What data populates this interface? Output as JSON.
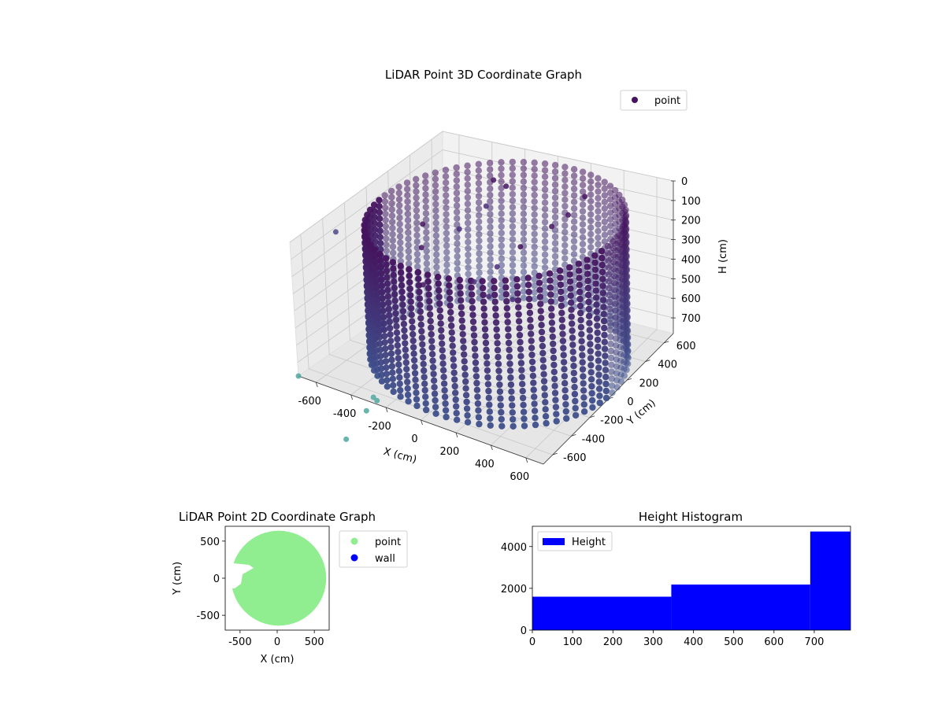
{
  "chart_data": [
    {
      "type": "scatter",
      "title": "LiDAR Point 3D Coordinate Graph",
      "xlabel": "X (cm)",
      "ylabel": "Y (cm)",
      "zlabel": "H (cm)",
      "xlim": [
        -700,
        700
      ],
      "ylim": [
        -700,
        700
      ],
      "zlim": [
        0,
        780
      ],
      "z_inverted": true,
      "x_ticks": [
        -600,
        -400,
        -200,
        0,
        200,
        400,
        600
      ],
      "y_ticks": [
        -600,
        -400,
        -200,
        0,
        200,
        400,
        600
      ],
      "z_ticks": [
        0,
        100,
        200,
        300,
        400,
        500,
        600,
        700
      ],
      "grid": true,
      "legend": {
        "position": "top-right",
        "entries": [
          {
            "label": "point",
            "color": "#46145f"
          }
        ]
      },
      "cylinder": {
        "center": [
          30,
          60
        ],
        "radius": 660,
        "h_top": 60,
        "h_bottom": 780,
        "angular_samples": 72,
        "height_samples": 22
      },
      "extra_points": [
        {
          "x": -560,
          "y": -500,
          "h": 0,
          "color": "#4e4a8a"
        },
        {
          "x": -250,
          "y": 480,
          "h": 80,
          "color": "#46145f"
        },
        {
          "x": -200,
          "y": 520,
          "h": 120,
          "color": "#46145f"
        },
        {
          "x": -500,
          "y": 200,
          "h": 250,
          "color": "#46145f"
        },
        {
          "x": -420,
          "y": 60,
          "h": 300,
          "color": "#46145f"
        },
        {
          "x": -330,
          "y": -80,
          "h": 420,
          "color": "#46145f"
        },
        {
          "x": -250,
          "y": 150,
          "h": 200,
          "color": "#4a2f7a"
        },
        {
          "x": -150,
          "y": 250,
          "h": 100,
          "color": "#4a2f7a"
        },
        {
          "x": -100,
          "y": 40,
          "h": 400,
          "color": "#4a2f7a"
        },
        {
          "x": -40,
          "y": 80,
          "h": 480,
          "color": "#4a2f7a"
        },
        {
          "x": 40,
          "y": 180,
          "h": 520,
          "color": "#4a2f7a"
        },
        {
          "x": 20,
          "y": 300,
          "h": 300,
          "color": "#46145f"
        },
        {
          "x": 160,
          "y": 380,
          "h": 200,
          "color": "#46145f"
        },
        {
          "x": 260,
          "y": 380,
          "h": 120,
          "color": "#46145f"
        },
        {
          "x": 300,
          "y": 480,
          "h": 60,
          "color": "#46145f"
        },
        {
          "x": -60,
          "y": 200,
          "h": 380,
          "color": "#4a2f7a"
        },
        {
          "x": -700,
          "y": -700,
          "h": 780,
          "color": "#4fa8a0"
        },
        {
          "x": -300,
          "y": -650,
          "h": 780,
          "color": "#4fa8a0"
        },
        {
          "x": -250,
          "y": -700,
          "h": 760,
          "color": "#4fa8a0"
        },
        {
          "x": -260,
          "y": -790,
          "h": 780,
          "color": "#4fa8a0"
        },
        {
          "x": -200,
          "y": -1100,
          "h": 780,
          "color": "#4fa8a0"
        }
      ]
    },
    {
      "type": "scatter",
      "title": "LiDAR Point 2D Coordinate Graph",
      "xlabel": "X (cm)",
      "ylabel": "Y (cm)",
      "xlim": [
        -700,
        700
      ],
      "ylim": [
        -700,
        700
      ],
      "x_ticks": [
        -500,
        0,
        500
      ],
      "y_ticks": [
        -500,
        0,
        500
      ],
      "legend": {
        "position": "outside-right",
        "entries": [
          {
            "label": "point",
            "color": "#90ee90"
          },
          {
            "label": "wall",
            "color": "#0000ff"
          }
        ]
      },
      "region": {
        "center": [
          20,
          0
        ],
        "radius": 640,
        "color": "#90ee90"
      }
    },
    {
      "type": "bar",
      "title": "Height Histogram",
      "bins": [
        [
          0,
          345
        ],
        [
          345,
          690
        ],
        [
          690,
          790
        ]
      ],
      "values": [
        1600,
        2180,
        4720
      ],
      "xlim": [
        0,
        790
      ],
      "ylim": [
        0,
        4970
      ],
      "x_ticks": [
        0,
        100,
        200,
        300,
        400,
        500,
        600,
        700
      ],
      "y_ticks": [
        0,
        2000,
        4000
      ],
      "color": "#0000ff",
      "legend": {
        "position": "top-left",
        "entries": [
          {
            "label": "Height",
            "color": "#0000ff"
          }
        ]
      }
    }
  ]
}
